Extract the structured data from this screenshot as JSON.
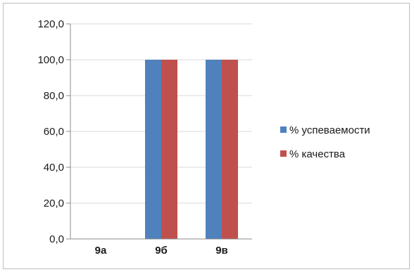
{
  "chart_data": {
    "type": "bar",
    "categories": [
      "9а",
      "9б",
      "9в"
    ],
    "series": [
      {
        "name": "% успеваемости",
        "values": [
          0,
          100,
          100
        ],
        "color": "#4f81bd"
      },
      {
        "name": "% качества",
        "values": [
          0,
          100,
          100
        ],
        "color": "#c0504d"
      }
    ],
    "yticks": [
      "0,0",
      "20,0",
      "40,0",
      "60,0",
      "80,0",
      "100,0",
      "120,0"
    ],
    "ylim": [
      0,
      120
    ],
    "grid": true,
    "legend": "right"
  }
}
